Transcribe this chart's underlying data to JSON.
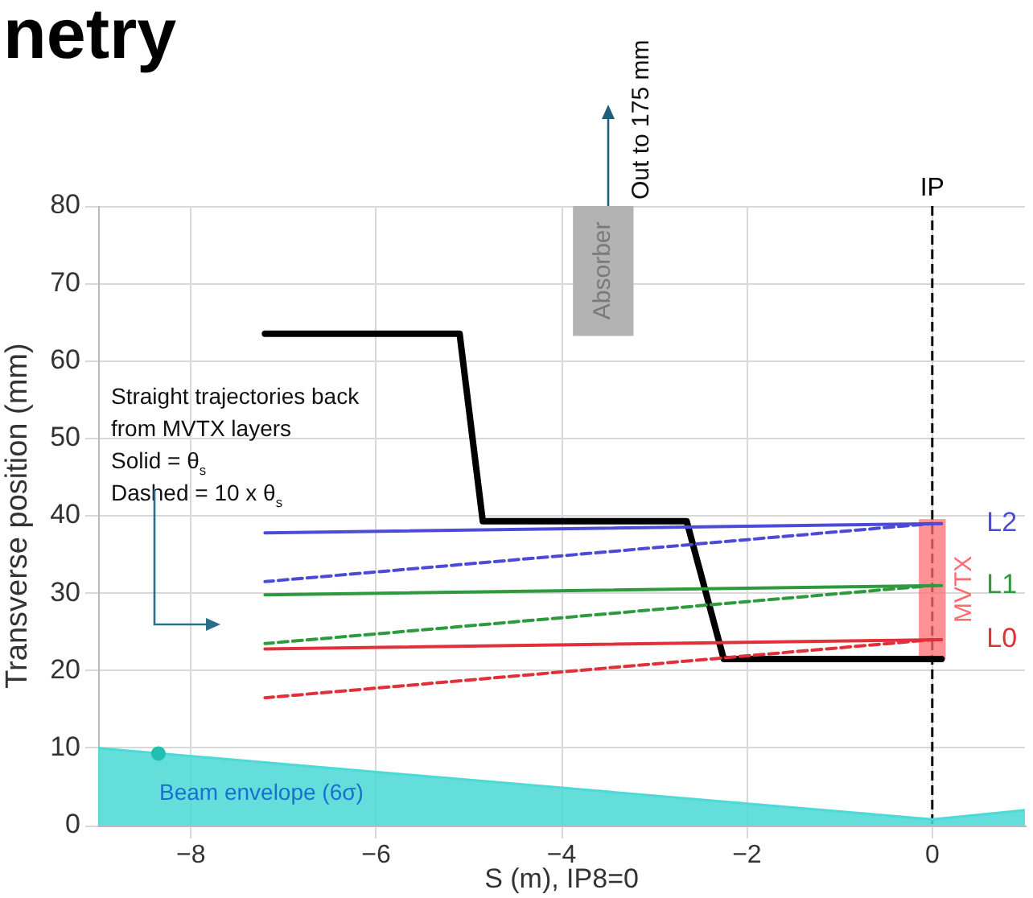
{
  "chart_data": {
    "type": "line",
    "title": "netry",
    "xlabel": "S (m), IP8=0",
    "ylabel": "Transverse position (mm)",
    "xlim": [
      -9,
      1
    ],
    "xticks": [
      {
        "value": -8,
        "label": "−8"
      },
      {
        "value": -6,
        "label": "−6"
      },
      {
        "value": -4,
        "label": "−4"
      },
      {
        "value": -2,
        "label": "−2"
      },
      0
    ],
    "ylim": [
      0,
      80
    ],
    "yticks": [
      0,
      10,
      20,
      30,
      40,
      50,
      60,
      70,
      80
    ],
    "grid": true,
    "legend": false,
    "marker": "none",
    "line_style": "solid",
    "series": [
      {
        "type": "area",
        "name": "Beam envelope (6σ)",
        "color": "#4dd9d5",
        "x": [
          -9,
          0,
          1
        ],
        "values": [
          10,
          0.8,
          2
        ]
      },
      {
        "type": "scatter",
        "color": "#20bfb0",
        "marker": "circle",
        "x": [
          -8.35
        ],
        "values": [
          9.3
        ]
      },
      {
        "type": "bar",
        "name": "Absorber",
        "color": "#b3b3b3",
        "x": [
          -3.55
        ],
        "base": [
          63.3
        ],
        "values": [
          16.7
        ]
      },
      {
        "type": "bar",
        "name": "MVTX",
        "color": "#ff6b70",
        "x": [
          0
        ],
        "base": [
          21.5
        ],
        "values": [
          18
        ]
      },
      {
        "color": "#000000",
        "x": [
          -7.2,
          -5.1,
          -4.85,
          -2.65,
          -2.25,
          0.1
        ],
        "values": [
          63.5,
          63.5,
          39.3,
          39.3,
          21.5,
          21.5
        ]
      },
      {
        "name": "L2",
        "color": "#4b4bd8",
        "x": [
          -7.2,
          0.1
        ],
        "values": [
          37.8,
          39
        ]
      },
      {
        "line_style": "dashed",
        "color": "#4b4bd8",
        "x": [
          -7.2,
          0
        ],
        "values": [
          31.5,
          39
        ]
      },
      {
        "name": "L1",
        "color": "#2e9a3e",
        "x": [
          -7.2,
          0.1
        ],
        "values": [
          29.8,
          31
        ]
      },
      {
        "line_style": "dashed",
        "color": "#2e9a3e",
        "x": [
          -7.2,
          0
        ],
        "values": [
          23.5,
          31
        ]
      },
      {
        "name": "L0",
        "color": "#e0303a",
        "x": [
          -7.2,
          0.1
        ],
        "values": [
          22.8,
          24
        ]
      },
      {
        "line_style": "dashed",
        "color": "#e0303a",
        "x": [
          -7.2,
          0
        ],
        "values": [
          16.5,
          24
        ]
      }
    ],
    "ref_lines": [
      {
        "axis": "x",
        "value": 0,
        "label": "IP",
        "color": "#000000",
        "line_style": "dashed"
      }
    ],
    "annotations": [
      "Straight trajectories back\nfrom MVTX layers\nSolid = θ$_{s}$\nDashed = 10 x θ$_{s}$",
      {
        "text": "Out to 175 mm",
        "x": -3.55,
        "y": 80
      }
    ]
  }
}
